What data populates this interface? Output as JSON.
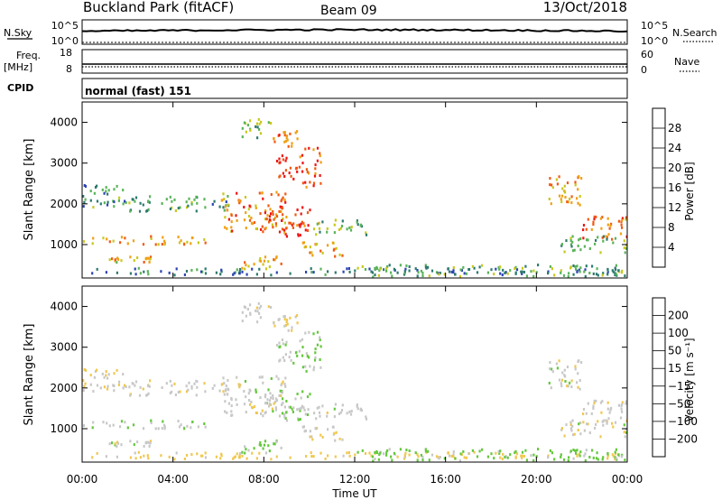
{
  "header": {
    "station": "Buckland Park (fitACF)",
    "beam": "Beam 09",
    "date": "13/Oct/2018"
  },
  "strips": {
    "nsky": {
      "label": "N.Sky",
      "top_tick": "10^5",
      "bottom_tick": "10^0"
    },
    "nsearch": {
      "label": "N.Search",
      "top_tick": "10^5",
      "bottom_tick": "10^0"
    },
    "freq": {
      "label_line1": "Freq.",
      "label_line2": "[MHz]",
      "top_tick": "18",
      "bottom_tick": "8"
    },
    "nave": {
      "label": "Nave",
      "top_tick": "60",
      "bottom_tick": "0"
    },
    "cpid": {
      "label": "CPID",
      "mode_text": "normal (fast) 151"
    }
  },
  "axes": {
    "ylabel": "Slant Range [km]",
    "xlabel": "Time UT",
    "yticks": [
      "1000",
      "2000",
      "3000",
      "4000"
    ],
    "xticks": [
      "00:00",
      "04:00",
      "08:00",
      "12:00",
      "16:00",
      "20:00",
      "00:00"
    ]
  },
  "power_colorbar": {
    "label": "Power [dB]",
    "ticks": [
      "4",
      "8",
      "12",
      "16",
      "20",
      "24",
      "28"
    ],
    "colors": [
      "#0a14e6",
      "#2d44b4",
      "#2d7a6e",
      "#5ab45a",
      "#c8c81e",
      "#f0a014",
      "#f05a14",
      "#f01414"
    ]
  },
  "velocity_colorbar": {
    "label": "Velocity [m s⁻¹]",
    "ticks": [
      "200",
      "100",
      "50",
      "15",
      "−15",
      "−50",
      "−100",
      "−200"
    ],
    "colors": [
      "#1428c8",
      "#2d5aa0",
      "#2d7a6e",
      "#64c83c",
      "#c8c8c8",
      "#f0c850",
      "#f0a014",
      "#f05a14",
      "#f01414"
    ]
  },
  "chart_data": {
    "type": "heatmap",
    "x_range_hours": [
      0,
      24
    ],
    "y_range_km": [
      180,
      4500
    ],
    "echo_regions": [
      {
        "t": [
          0.0,
          24.0
        ],
        "r": [
          250,
          420
        ],
        "power": 9,
        "velocity": -30
      },
      {
        "t": [
          0.0,
          6.0
        ],
        "r": [
          1000,
          1200
        ],
        "power": 21,
        "velocity": 5
      },
      {
        "t": [
          1.0,
          3.0
        ],
        "r": [
          550,
          700
        ],
        "power": 20,
        "velocity": 0
      },
      {
        "t": [
          0.0,
          2.0
        ],
        "r": [
          1900,
          2500
        ],
        "power": 12,
        "velocity": -10
      },
      {
        "t": [
          2.0,
          6.5
        ],
        "r": [
          1800,
          2200
        ],
        "power": 12,
        "velocity": -5
      },
      {
        "t": [
          6.0,
          9.0
        ],
        "r": [
          1300,
          2300
        ],
        "power": 24,
        "velocity": 0
      },
      {
        "t": [
          8.0,
          10.0
        ],
        "r": [
          1200,
          2000
        ],
        "power": 27,
        "velocity": 10
      },
      {
        "t": [
          8.5,
          9.5
        ],
        "r": [
          2600,
          3200
        ],
        "power": 29,
        "velocity": 5
      },
      {
        "t": [
          9.5,
          10.5
        ],
        "r": [
          2400,
          3400
        ],
        "power": 27,
        "velocity": 15
      },
      {
        "t": [
          8.3,
          9.5
        ],
        "r": [
          3400,
          3800
        ],
        "power": 25,
        "velocity": -10
      },
      {
        "t": [
          7.0,
          8.3
        ],
        "r": [
          3600,
          4100
        ],
        "power": 14,
        "velocity": 0
      },
      {
        "t": [
          10.0,
          12.5
        ],
        "r": [
          1200,
          1600
        ],
        "power": 16,
        "velocity": 0
      },
      {
        "t": [
          9.5,
          11.5
        ],
        "r": [
          700,
          1100
        ],
        "power": 22,
        "velocity": -5
      },
      {
        "t": [
          7.0,
          9.0
        ],
        "r": [
          400,
          700
        ],
        "power": 21,
        "velocity": 20
      },
      {
        "t": [
          12.0,
          24.0
        ],
        "r": [
          200,
          500
        ],
        "power": 13,
        "velocity": 30
      },
      {
        "t": [
          20.5,
          22.0
        ],
        "r": [
          1900,
          2700
        ],
        "power": 22,
        "velocity": 0
      },
      {
        "t": [
          22.0,
          24.0
        ],
        "r": [
          1100,
          1700
        ],
        "power": 24,
        "velocity": -5
      },
      {
        "t": [
          21.0,
          24.0
        ],
        "r": [
          800,
          1200
        ],
        "power": 14,
        "velocity": 0
      }
    ]
  }
}
